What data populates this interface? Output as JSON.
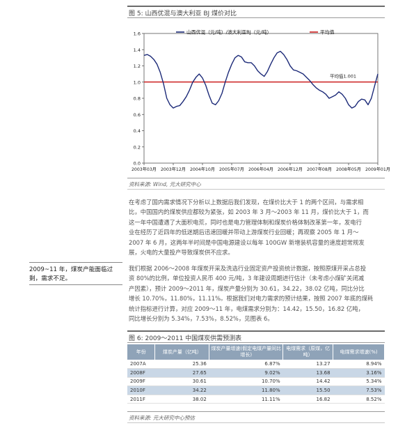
{
  "figure5": {
    "title": "图 5: 山西优混与澳大利亚 BJ 煤价对比",
    "source": "资料来源: Wind, 元大研究中心"
  },
  "chart_data": {
    "type": "line",
    "title": "",
    "legend": [
      "山西优混（元/吨）/澳大利亚BJ（元/吨）",
      "平均值"
    ],
    "legend_placement": "top",
    "ylim": [
      0.0,
      1.6
    ],
    "yticks": [
      "0.0",
      "0.2",
      "0.4",
      "0.6",
      "0.8",
      "1.0",
      "1.2",
      "1.4",
      "1.6"
    ],
    "xticks": [
      "2003年03月",
      "2003年12月",
      "2004年10月",
      "2005年07月",
      "2006年04月",
      "2006年12月",
      "2007年08月",
      "2008年05月",
      "2009年01月"
    ],
    "annotation": "平均值1.001",
    "mean_value": 1.001,
    "colors": {
      "series": "#1c2a78",
      "mean": "#cc1f1f"
    },
    "series": [
      {
        "name": "山西优混（元/吨）/澳大利亚BJ（元/吨）",
        "x": [
          "2003-03",
          "2003-04",
          "2003-05",
          "2003-06",
          "2003-07",
          "2003-08",
          "2003-09",
          "2003-10",
          "2003-11",
          "2003-12",
          "2004-01",
          "2004-02",
          "2004-03",
          "2004-04",
          "2004-05",
          "2004-06",
          "2004-07",
          "2004-08",
          "2004-09",
          "2004-10",
          "2004-11",
          "2004-12",
          "2005-01",
          "2005-02",
          "2005-03",
          "2005-04",
          "2005-05",
          "2005-06",
          "2005-07",
          "2005-08",
          "2005-09",
          "2005-10",
          "2005-11",
          "2005-12",
          "2006-01",
          "2006-02",
          "2006-03",
          "2006-04",
          "2006-05",
          "2006-06",
          "2006-07",
          "2006-08",
          "2006-09",
          "2006-10",
          "2006-11",
          "2006-12",
          "2007-01",
          "2007-02",
          "2007-03",
          "2007-04",
          "2007-05",
          "2007-06",
          "2007-07",
          "2007-08",
          "2007-09",
          "2007-10",
          "2007-11",
          "2007-12",
          "2008-01",
          "2008-02",
          "2008-03",
          "2008-04",
          "2008-05",
          "2008-06",
          "2008-07",
          "2008-08",
          "2008-09",
          "2008-10",
          "2008-11",
          "2008-12",
          "2009-01",
          "2009-02",
          "2009-03"
        ],
        "values": [
          1.33,
          1.34,
          1.32,
          1.28,
          1.22,
          1.12,
          0.98,
          0.8,
          0.72,
          0.68,
          0.7,
          0.71,
          0.76,
          0.82,
          0.9,
          1.0,
          1.06,
          1.1,
          1.05,
          0.96,
          0.84,
          0.74,
          0.72,
          0.77,
          0.86,
          1.0,
          1.12,
          1.22,
          1.3,
          1.33,
          1.31,
          1.25,
          1.24,
          1.24,
          1.2,
          1.14,
          1.1,
          1.07,
          1.13,
          1.22,
          1.3,
          1.36,
          1.38,
          1.34,
          1.28,
          1.2,
          1.15,
          1.14,
          1.12,
          1.1,
          1.06,
          1.02,
          0.97,
          0.93,
          0.9,
          0.88,
          0.85,
          0.8,
          0.82,
          0.84,
          0.88,
          0.85,
          0.8,
          0.72,
          0.68,
          0.7,
          0.76,
          0.79,
          0.78,
          0.72,
          0.8,
          0.95,
          1.1
        ]
      }
    ]
  },
  "paragraph1": [
    "在考虑了国内需求情况下分析以上数据后我们发现，在煤价比大于 1 的两个区间，与需求相",
    "比，中国国内的煤炭供应都较为紧张，如 2003 年 3 月～2003 年 11 月，煤价比大于 1，而",
    "这一年中国遭遇了大面积电荒，同时也是电力管理体制和煤炭价格体制改革第一年，发电行",
    "业在经历了近四年的低迷期后迅速回暖并带动上游煤炭行业回暖；再观察 2005 年 1 月～",
    "2007 年 6 月，这两年半时间是中国电源建设以每年 100GW 新增装机容量的速度超常规发",
    "展，火电的大量投产导致煤炭供不应求。"
  ],
  "sidebar_note": [
    "2009~11 年，煤炭产能面临过",
    "剩，需求不足。"
  ],
  "paragraph2": [
    "我们根据 2006～2008 年煤炭开采及洗选行业固定资产投资统计数据，按照原煤开采占总投",
    "资 80%的比例，单位投资人民币 400 元/吨，3 年建设周期进行估计（未考虑小煤矿关闭减",
    "产因素），预计 2009～2011 年，煤炭产量分别为 30.61，34.22，38.02 亿吨，同比分比",
    "增长 10.70%，11.80%，11.11%。根据我们对电力需求的预计结果，按照 2007 年底的煤耗",
    "统计指标进行计算，对应 2009～11 年，电煤需求分别为：14.42，15.50，16.82 亿吨，",
    "同比增长分别为 5.34%，7.53%，8.52%，见图表 6。"
  ],
  "figure6": {
    "title": "图 6: 2009～2011 中国煤炭供需预测表",
    "source": "资料来源: 元大研究中心预估",
    "headers": [
      "年份",
      "煤炭产量（亿吨）",
      "煤炭产量增速(假定电煤产量同比增长)",
      "电煤需求（原煤，亿吨）",
      "电煤需求增速(%)"
    ],
    "rows": [
      [
        "2007A",
        "25.36",
        "6.87%",
        "13.27",
        "8.94%"
      ],
      [
        "2008F",
        "27.65",
        "9.02%",
        "13.68",
        "3.16%"
      ],
      [
        "2009F",
        "30.61",
        "10.70%",
        "14.42",
        "5.34%"
      ],
      [
        "2010F",
        "34.22",
        "11.80%",
        "15.50",
        "7.53%"
      ],
      [
        "2011F",
        "38.02",
        "11.11%",
        "16.82",
        "8.52%"
      ]
    ]
  }
}
